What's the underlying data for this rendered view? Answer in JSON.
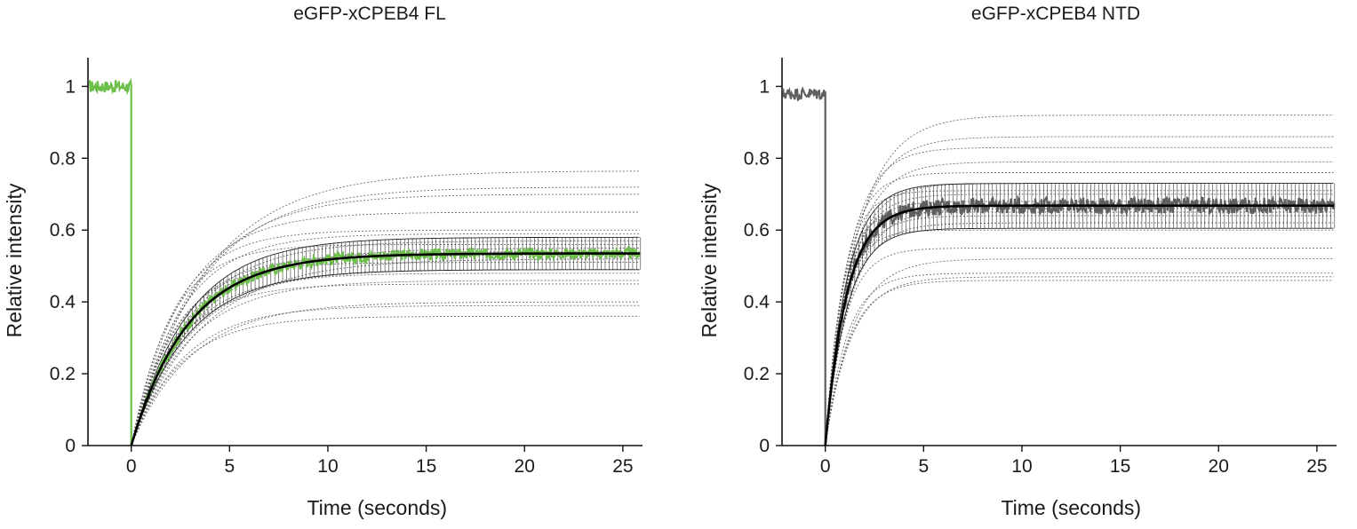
{
  "chart_data": [
    {
      "type": "line",
      "title": "eGFP-xCPEB4 FL",
      "xlabel": "Time (seconds)",
      "ylabel": "Relative intensity",
      "xlim": [
        -2.2,
        26
      ],
      "ylim": [
        0,
        1.08
      ],
      "xticks": [
        0,
        5,
        10,
        15,
        20,
        25
      ],
      "yticks": [
        0,
        0.2,
        0.4,
        0.6,
        0.8,
        1
      ],
      "ytick_labels": [
        "0",
        "0.2",
        "0.4",
        "0.6",
        "0.8",
        "1"
      ],
      "data_color": "#6cc04a",
      "pre_bleach_level": 1.0,
      "mean_fit": {
        "plateau": 0.535,
        "tau": 2.9
      },
      "error_band": {
        "upper": 0.58,
        "lower": 0.49
      },
      "individual_fits": [
        {
          "plateau": 0.765,
          "tau": 3.8
        },
        {
          "plateau": 0.72,
          "tau": 3.5
        },
        {
          "plateau": 0.7,
          "tau": 3.2
        },
        {
          "plateau": 0.65,
          "tau": 2.6
        },
        {
          "plateau": 0.6,
          "tau": 2.2
        },
        {
          "plateau": 0.59,
          "tau": 2.5
        },
        {
          "plateau": 0.57,
          "tau": 3.0
        },
        {
          "plateau": 0.56,
          "tau": 2.0
        },
        {
          "plateau": 0.55,
          "tau": 3.3
        },
        {
          "plateau": 0.54,
          "tau": 2.8
        },
        {
          "plateau": 0.53,
          "tau": 2.4
        },
        {
          "plateau": 0.52,
          "tau": 3.6
        },
        {
          "plateau": 0.51,
          "tau": 2.2
        },
        {
          "plateau": 0.49,
          "tau": 3.0
        },
        {
          "plateau": 0.48,
          "tau": 2.6
        },
        {
          "plateau": 0.46,
          "tau": 2.9
        },
        {
          "plateau": 0.45,
          "tau": 2.3
        },
        {
          "plateau": 0.4,
          "tau": 3.1
        },
        {
          "plateau": 0.39,
          "tau": 2.7
        },
        {
          "plateau": 0.36,
          "tau": 2.5
        }
      ]
    },
    {
      "type": "line",
      "title": "eGFP-xCPEB4 NTD",
      "xlabel": "Time (seconds)",
      "ylabel": "Relative intensity",
      "xlim": [
        -2.2,
        26
      ],
      "ylim": [
        0,
        1.08
      ],
      "xticks": [
        0,
        5,
        10,
        15,
        20,
        25
      ],
      "yticks": [
        0,
        0.2,
        0.4,
        0.6,
        0.8,
        1
      ],
      "ytick_labels": [
        "0",
        "0.2",
        "0.4",
        "0.6",
        "0.8",
        "1"
      ],
      "data_color": "#5f5f5f",
      "pre_bleach_level": 0.98,
      "mean_fit": {
        "plateau": 0.668,
        "tau": 1.1
      },
      "error_band": {
        "upper": 0.73,
        "lower": 0.605
      },
      "individual_fits": [
        {
          "plateau": 0.92,
          "tau": 1.6
        },
        {
          "plateau": 0.86,
          "tau": 1.4
        },
        {
          "plateau": 0.83,
          "tau": 1.2
        },
        {
          "plateau": 0.79,
          "tau": 1.3
        },
        {
          "plateau": 0.76,
          "tau": 1.0
        },
        {
          "plateau": 0.73,
          "tau": 1.2
        },
        {
          "plateau": 0.71,
          "tau": 0.9
        },
        {
          "plateau": 0.7,
          "tau": 1.1
        },
        {
          "plateau": 0.68,
          "tau": 1.0
        },
        {
          "plateau": 0.66,
          "tau": 1.3
        },
        {
          "plateau": 0.65,
          "tau": 0.8
        },
        {
          "plateau": 0.64,
          "tau": 1.1
        },
        {
          "plateau": 0.62,
          "tau": 1.2
        },
        {
          "plateau": 0.6,
          "tau": 0.9
        },
        {
          "plateau": 0.55,
          "tau": 1.0
        },
        {
          "plateau": 0.52,
          "tau": 1.4
        },
        {
          "plateau": 0.48,
          "tau": 1.1
        },
        {
          "plateau": 0.47,
          "tau": 1.3
        },
        {
          "plateau": 0.46,
          "tau": 1.2
        }
      ]
    }
  ]
}
